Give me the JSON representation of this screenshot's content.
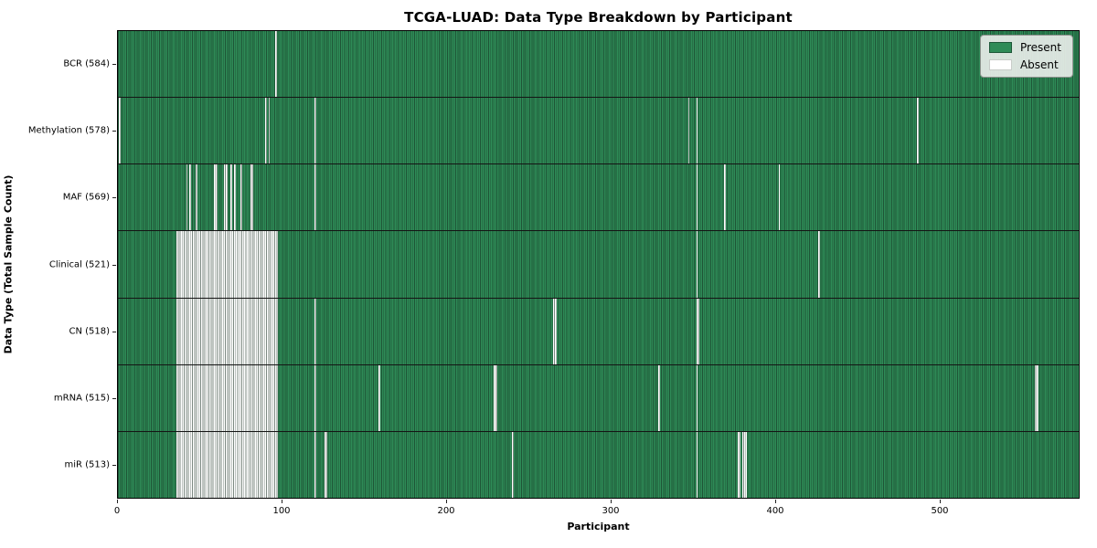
{
  "chart_data": {
    "type": "heatmap",
    "title": "TCGA-LUAD: Data Type Breakdown by Participant",
    "xlabel": "Participant",
    "ylabel": "Data Type (Total Sample Count)",
    "x_ticks": [
      0,
      100,
      200,
      300,
      400,
      500
    ],
    "xlim": [
      0,
      585
    ],
    "n_participants": 585,
    "grid": false,
    "legend": {
      "position": "upper right",
      "items": [
        {
          "label": "Present",
          "color": "#2e8b57",
          "border": "#1d5738"
        },
        {
          "label": "Absent",
          "color": "#ffffff",
          "border": "#c8ccc8"
        }
      ]
    },
    "rows": [
      {
        "name": "BCR",
        "label": "BCR (584)",
        "present_count": 584,
        "absent_ranges": [
          [
            96,
            96
          ]
        ]
      },
      {
        "name": "Methylation",
        "label": "Methylation (578)",
        "present_count": 578,
        "absent_ranges": [
          [
            1,
            1
          ],
          [
            90,
            90
          ],
          [
            92,
            92
          ],
          [
            120,
            120
          ],
          [
            347,
            347
          ],
          [
            352,
            352
          ],
          [
            486,
            486
          ]
        ]
      },
      {
        "name": "MAF",
        "label": "MAF (569)",
        "present_count": 569,
        "absent_ranges": [
          [
            42,
            42
          ],
          [
            44,
            44
          ],
          [
            48,
            48
          ],
          [
            59,
            60
          ],
          [
            65,
            66
          ],
          [
            69,
            69
          ],
          [
            71,
            71
          ],
          [
            75,
            75
          ],
          [
            81,
            82
          ],
          [
            120,
            120
          ],
          [
            352,
            352
          ],
          [
            369,
            369
          ],
          [
            402,
            402
          ]
        ]
      },
      {
        "name": "Clinical",
        "label": "Clinical (521)",
        "present_count": 521,
        "absent_ranges": [
          [
            36,
            97
          ],
          [
            352,
            352
          ],
          [
            426,
            426
          ]
        ]
      },
      {
        "name": "CN",
        "label": "CN (518)",
        "present_count": 518,
        "absent_ranges": [
          [
            36,
            97
          ],
          [
            120,
            120
          ],
          [
            265,
            266
          ],
          [
            352,
            353
          ]
        ]
      },
      {
        "name": "mRNA",
        "label": "mRNA (515)",
        "present_count": 515,
        "absent_ranges": [
          [
            36,
            97
          ],
          [
            120,
            120
          ],
          [
            159,
            159
          ],
          [
            229,
            230
          ],
          [
            329,
            329
          ],
          [
            352,
            352
          ],
          [
            558,
            559
          ]
        ]
      },
      {
        "name": "miR",
        "label": "miR (513)",
        "present_count": 513,
        "absent_ranges": [
          [
            36,
            97
          ],
          [
            120,
            120
          ],
          [
            126,
            127
          ],
          [
            240,
            240
          ],
          [
            352,
            352
          ],
          [
            377,
            378
          ],
          [
            380,
            382
          ]
        ]
      }
    ],
    "colors": {
      "present": "#2e8b57",
      "absent": "#ffffff",
      "cell_edge": "#10281a",
      "row_separator": "#141414",
      "legend_bg": "#e8ede8"
    }
  }
}
